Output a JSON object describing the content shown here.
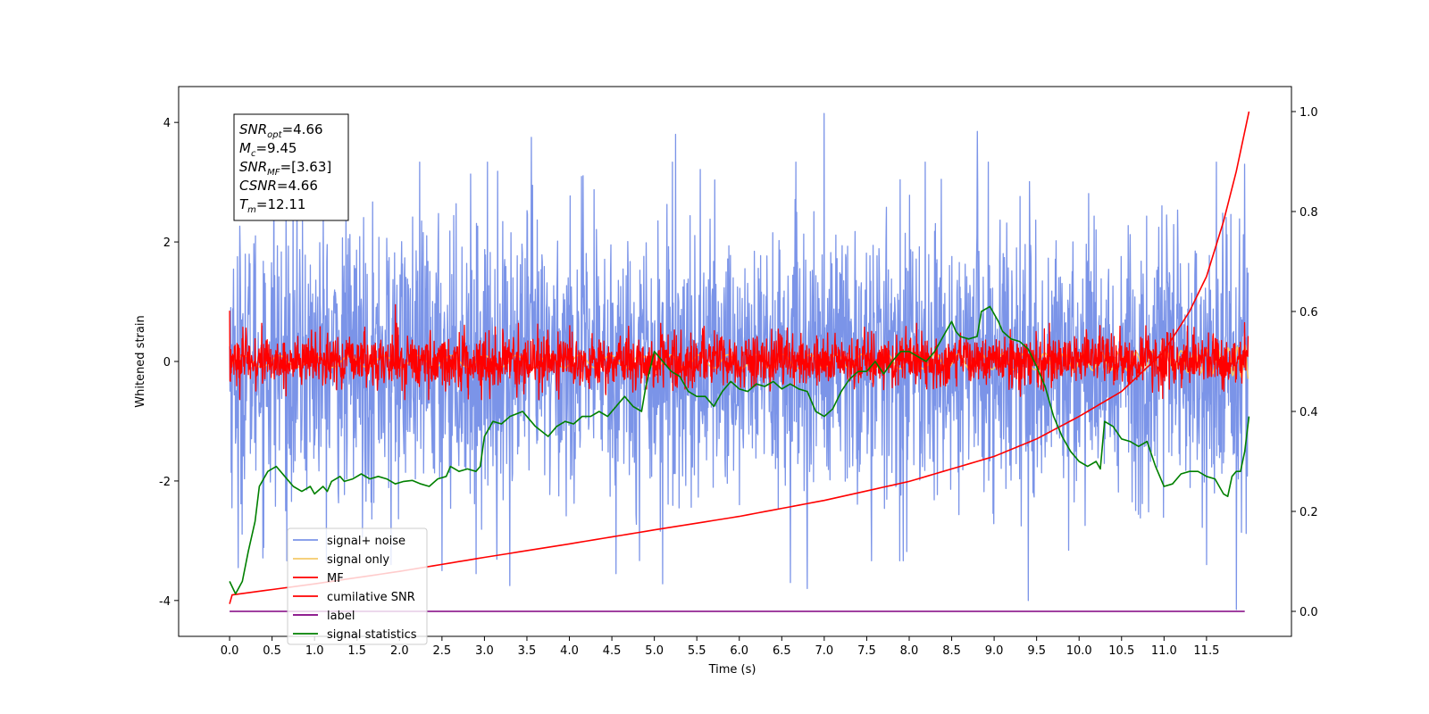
{
  "chart_data": {
    "type": "line",
    "xlabel": "Time (s)",
    "ylabel": "Whitened strain",
    "xlim": [
      -0.6,
      12.5
    ],
    "ylim": [
      -4.6,
      4.6
    ],
    "y2lim": [
      -0.05,
      1.05
    ],
    "x_ticks": [
      "0.0",
      "0.5",
      "1.0",
      "1.5",
      "2.0",
      "2.5",
      "3.0",
      "3.5",
      "4.0",
      "4.5",
      "5.0",
      "5.5",
      "6.0",
      "6.5",
      "7.0",
      "7.5",
      "8.0",
      "8.5",
      "9.0",
      "9.5",
      "10.0",
      "10.5",
      "11.0",
      "11.5"
    ],
    "y_ticks": [
      "4",
      "2",
      "0",
      "-2",
      "-4"
    ],
    "y2_ticks": [
      "1.0",
      "0.8",
      "0.6",
      "0.4",
      "0.2",
      "0.0"
    ],
    "grid": false,
    "legend_position": "lower-left",
    "annotation": {
      "lines": [
        {
          "base": "SNR",
          "sub": "opt",
          "value": "=4.66"
        },
        {
          "base": "M",
          "sub": "c",
          "value": "=9.45"
        },
        {
          "base": "SNR",
          "sub": "MF",
          "value": "=[3.63]"
        },
        {
          "base": "CSNR",
          "sub": "",
          "value": "=4.66"
        },
        {
          "base": "T",
          "sub": "m",
          "value": "=12.11"
        }
      ]
    },
    "series": [
      {
        "name": "signal+ noise",
        "color": "#7b94e8",
        "axis": "left",
        "style": "noise",
        "x_range": [
          0.0,
          11.99
        ],
        "amplitude_sigma": 1.15,
        "peaks": [
          [
            0.1,
            -3.45
          ],
          [
            0.52,
            3.6
          ],
          [
            1.9,
            -3.4
          ],
          [
            2.5,
            -3.5
          ],
          [
            2.9,
            -3.55
          ],
          [
            3.3,
            -3.75
          ],
          [
            3.55,
            3.75
          ],
          [
            4.55,
            -3.55
          ],
          [
            5.1,
            -3.72
          ],
          [
            5.25,
            3.8
          ],
          [
            6.6,
            -3.7
          ],
          [
            6.8,
            -3.8
          ],
          [
            7.0,
            4.15
          ],
          [
            8.8,
            3.85
          ],
          [
            9.4,
            -4.0
          ],
          [
            11.5,
            -3.4
          ],
          [
            11.85,
            -4.15
          ],
          [
            11.95,
            3.3
          ]
        ]
      },
      {
        "name": "signal only",
        "color": "#f5c96a",
        "axis": "left",
        "style": "chirp",
        "x_range": [
          0.0,
          11.99
        ],
        "amplitude_end": 0.3
      },
      {
        "name": "MF",
        "color": "#ff0000",
        "axis": "left",
        "style": "noise",
        "x_range": [
          0.0,
          11.99
        ],
        "amplitude_sigma": 0.22,
        "peaks": [
          [
            0.0,
            0.85
          ],
          [
            1.95,
            0.95
          ],
          [
            11.95,
            0.65
          ]
        ]
      },
      {
        "name": "cumilative SNR",
        "color": "#ff0000",
        "axis": "right",
        "style": "curve",
        "points": [
          [
            0.0,
            0.015
          ],
          [
            0.03,
            0.033
          ],
          [
            1.0,
            0.055
          ],
          [
            2.0,
            0.08
          ],
          [
            3.0,
            0.108
          ],
          [
            4.0,
            0.135
          ],
          [
            5.0,
            0.163
          ],
          [
            6.0,
            0.19
          ],
          [
            7.0,
            0.222
          ],
          [
            8.0,
            0.26
          ],
          [
            9.0,
            0.31
          ],
          [
            9.5,
            0.345
          ],
          [
            10.0,
            0.39
          ],
          [
            10.5,
            0.44
          ],
          [
            11.0,
            0.52
          ],
          [
            11.3,
            0.6
          ],
          [
            11.5,
            0.67
          ],
          [
            11.7,
            0.78
          ],
          [
            11.85,
            0.88
          ],
          [
            12.0,
            1.0
          ]
        ]
      },
      {
        "name": "label",
        "color": "#800080",
        "axis": "right",
        "style": "line",
        "points": [
          [
            0.0,
            0.0
          ],
          [
            11.95,
            0.0
          ]
        ]
      },
      {
        "name": "signal statistics",
        "color": "#008000",
        "axis": "right",
        "style": "line",
        "points": [
          [
            0.0,
            0.06
          ],
          [
            0.07,
            0.035
          ],
          [
            0.15,
            0.06
          ],
          [
            0.22,
            0.12
          ],
          [
            0.3,
            0.18
          ],
          [
            0.35,
            0.25
          ],
          [
            0.45,
            0.28
          ],
          [
            0.55,
            0.29
          ],
          [
            0.65,
            0.27
          ],
          [
            0.75,
            0.25
          ],
          [
            0.85,
            0.24
          ],
          [
            0.95,
            0.25
          ],
          [
            1.0,
            0.235
          ],
          [
            1.1,
            0.25
          ],
          [
            1.15,
            0.24
          ],
          [
            1.2,
            0.26
          ],
          [
            1.3,
            0.27
          ],
          [
            1.35,
            0.26
          ],
          [
            1.45,
            0.265
          ],
          [
            1.55,
            0.275
          ],
          [
            1.65,
            0.265
          ],
          [
            1.75,
            0.27
          ],
          [
            1.85,
            0.265
          ],
          [
            1.95,
            0.255
          ],
          [
            2.05,
            0.26
          ],
          [
            2.15,
            0.262
          ],
          [
            2.25,
            0.255
          ],
          [
            2.35,
            0.25
          ],
          [
            2.45,
            0.265
          ],
          [
            2.55,
            0.27
          ],
          [
            2.6,
            0.29
          ],
          [
            2.7,
            0.28
          ],
          [
            2.8,
            0.285
          ],
          [
            2.9,
            0.28
          ],
          [
            2.95,
            0.29
          ],
          [
            3.0,
            0.35
          ],
          [
            3.1,
            0.38
          ],
          [
            3.2,
            0.375
          ],
          [
            3.3,
            0.39
          ],
          [
            3.45,
            0.4
          ],
          [
            3.6,
            0.37
          ],
          [
            3.75,
            0.35
          ],
          [
            3.85,
            0.37
          ],
          [
            3.95,
            0.38
          ],
          [
            4.05,
            0.375
          ],
          [
            4.15,
            0.39
          ],
          [
            4.25,
            0.39
          ],
          [
            4.35,
            0.4
          ],
          [
            4.45,
            0.39
          ],
          [
            4.55,
            0.41
          ],
          [
            4.65,
            0.43
          ],
          [
            4.75,
            0.41
          ],
          [
            4.85,
            0.4
          ],
          [
            4.9,
            0.45
          ],
          [
            5.0,
            0.52
          ],
          [
            5.1,
            0.5
          ],
          [
            5.2,
            0.48
          ],
          [
            5.3,
            0.47
          ],
          [
            5.4,
            0.44
          ],
          [
            5.5,
            0.43
          ],
          [
            5.6,
            0.43
          ],
          [
            5.7,
            0.41
          ],
          [
            5.8,
            0.44
          ],
          [
            5.9,
            0.46
          ],
          [
            6.0,
            0.445
          ],
          [
            6.1,
            0.44
          ],
          [
            6.2,
            0.455
          ],
          [
            6.3,
            0.45
          ],
          [
            6.4,
            0.46
          ],
          [
            6.5,
            0.445
          ],
          [
            6.6,
            0.455
          ],
          [
            6.7,
            0.445
          ],
          [
            6.8,
            0.44
          ],
          [
            6.9,
            0.4
          ],
          [
            7.0,
            0.39
          ],
          [
            7.1,
            0.405
          ],
          [
            7.2,
            0.44
          ],
          [
            7.3,
            0.465
          ],
          [
            7.4,
            0.48
          ],
          [
            7.5,
            0.48
          ],
          [
            7.6,
            0.5
          ],
          [
            7.7,
            0.475
          ],
          [
            7.8,
            0.5
          ],
          [
            7.9,
            0.52
          ],
          [
            8.0,
            0.52
          ],
          [
            8.1,
            0.51
          ],
          [
            8.2,
            0.5
          ],
          [
            8.3,
            0.52
          ],
          [
            8.4,
            0.55
          ],
          [
            8.5,
            0.58
          ],
          [
            8.55,
            0.56
          ],
          [
            8.6,
            0.55
          ],
          [
            8.7,
            0.545
          ],
          [
            8.8,
            0.55
          ],
          [
            8.85,
            0.6
          ],
          [
            8.95,
            0.61
          ],
          [
            9.05,
            0.58
          ],
          [
            9.1,
            0.56
          ],
          [
            9.2,
            0.545
          ],
          [
            9.3,
            0.54
          ],
          [
            9.4,
            0.525
          ],
          [
            9.5,
            0.49
          ],
          [
            9.6,
            0.45
          ],
          [
            9.7,
            0.39
          ],
          [
            9.8,
            0.35
          ],
          [
            9.9,
            0.32
          ],
          [
            10.0,
            0.3
          ],
          [
            10.1,
            0.29
          ],
          [
            10.2,
            0.3
          ],
          [
            10.25,
            0.285
          ],
          [
            10.3,
            0.38
          ],
          [
            10.4,
            0.37
          ],
          [
            10.5,
            0.345
          ],
          [
            10.6,
            0.34
          ],
          [
            10.7,
            0.33
          ],
          [
            10.8,
            0.34
          ],
          [
            10.9,
            0.29
          ],
          [
            11.0,
            0.25
          ],
          [
            11.1,
            0.255
          ],
          [
            11.2,
            0.275
          ],
          [
            11.3,
            0.28
          ],
          [
            11.4,
            0.28
          ],
          [
            11.5,
            0.27
          ],
          [
            11.6,
            0.265
          ],
          [
            11.7,
            0.235
          ],
          [
            11.75,
            0.23
          ],
          [
            11.8,
            0.27
          ],
          [
            11.85,
            0.28
          ],
          [
            11.9,
            0.28
          ],
          [
            11.95,
            0.32
          ],
          [
            12.0,
            0.39
          ]
        ]
      }
    ]
  }
}
